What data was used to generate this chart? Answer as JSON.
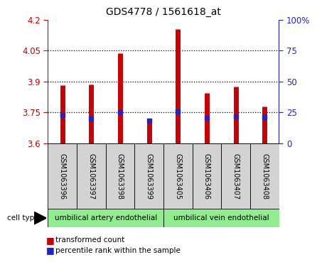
{
  "title": "GDS4778 / 1561618_at",
  "samples": [
    "GSM1063396",
    "GSM1063397",
    "GSM1063398",
    "GSM1063399",
    "GSM1063405",
    "GSM1063406",
    "GSM1063407",
    "GSM1063408"
  ],
  "transformed_count": [
    3.882,
    3.885,
    4.038,
    3.718,
    4.155,
    3.845,
    3.875,
    3.78
  ],
  "percentile_rank": [
    23.0,
    20.0,
    25.0,
    18.5,
    25.5,
    20.5,
    21.5,
    21.0
  ],
  "ylim_left": [
    3.6,
    4.2
  ],
  "ylim_right": [
    0,
    100
  ],
  "yticks_left": [
    3.6,
    3.75,
    3.9,
    4.05,
    4.2
  ],
  "yticks_right": [
    0,
    25,
    50,
    75,
    100
  ],
  "ytick_labels_right": [
    "0",
    "25",
    "50",
    "75",
    "100%"
  ],
  "bar_base": 3.6,
  "bar_color": "#cc0000",
  "blue_color": "#2222cc",
  "group1_label": "umbilical artery endothelial",
  "group2_label": "umbilical vein endothelial",
  "group1_indices": [
    0,
    1,
    2,
    3
  ],
  "group2_indices": [
    4,
    5,
    6,
    7
  ],
  "cell_type_label": "cell type",
  "legend_red": "transformed count",
  "legend_blue": "percentile rank within the sample",
  "bg_color": "#ffffff",
  "group_bg": "#90ee90",
  "sample_bg": "#d3d3d3",
  "left_tick_color": "#cc0000",
  "right_tick_color": "#2222cc"
}
